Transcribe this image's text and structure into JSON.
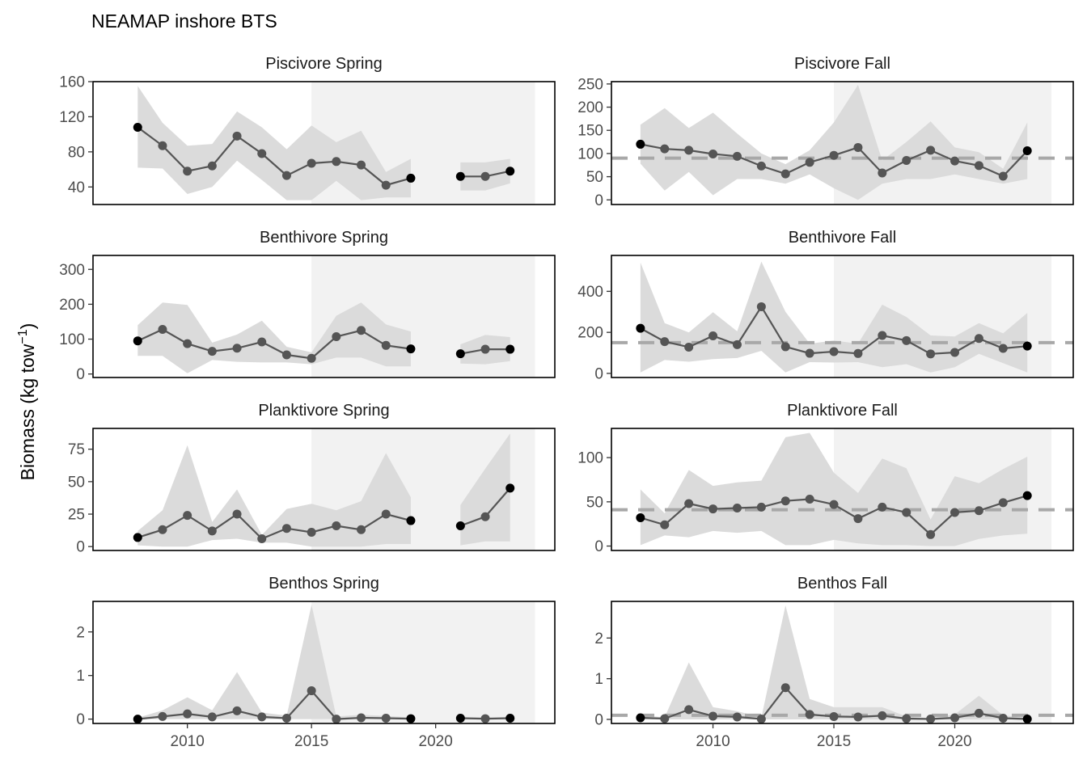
{
  "title": "NEAMAP inshore BTS",
  "ylabel": "Biomass (kg tow",
  "ylabel_sup": "−1",
  "ylabel_close": ")",
  "colors": {
    "ribbon": "#d9d9d9",
    "highlight": "#f2f2f2",
    "line": "#555555",
    "point": "#555555",
    "endpoint": "#000000",
    "mean_line": "#a8a8a8",
    "frame": "#000000"
  },
  "chart_data": [
    {
      "id": "piscivore-spring",
      "type": "line",
      "strip": "Piscivore Spring",
      "xlim": [
        2006.2,
        2024.8
      ],
      "ylim": [
        20,
        160
      ],
      "yticks": [
        40,
        80,
        120,
        160
      ],
      "xticks": [],
      "highlight": [
        2015,
        2024
      ],
      "mean": null,
      "x": [
        2008,
        2009,
        2010,
        2011,
        2012,
        2013,
        2014,
        2015,
        2016,
        2017,
        2018,
        2019,
        2020,
        2021,
        2022,
        2023
      ],
      "y": [
        108,
        87,
        58,
        64,
        98,
        78,
        53,
        67,
        69,
        65,
        42,
        50,
        null,
        52,
        52,
        58
      ],
      "lower": [
        62,
        61,
        32,
        40,
        70,
        48,
        25,
        25,
        47,
        25,
        28,
        28,
        null,
        36,
        36,
        44
      ],
      "upper": [
        155,
        113,
        87,
        89,
        126,
        108,
        83,
        110,
        91,
        104,
        57,
        72,
        null,
        68,
        68,
        72
      ]
    },
    {
      "id": "piscivore-fall",
      "type": "line",
      "strip": "Piscivore Fall",
      "xlim": [
        2005.8,
        2024.9
      ],
      "ylim": [
        -10,
        255
      ],
      "yticks": [
        0,
        50,
        100,
        150,
        200,
        250
      ],
      "xticks": [],
      "highlight": [
        2015,
        2024
      ],
      "mean": 90,
      "x": [
        2007,
        2008,
        2009,
        2010,
        2011,
        2012,
        2013,
        2014,
        2015,
        2016,
        2017,
        2018,
        2019,
        2020,
        2021,
        2022,
        2023
      ],
      "y": [
        120,
        110,
        107,
        99,
        94,
        73,
        56,
        81,
        96,
        113,
        58,
        85,
        107,
        84,
        74,
        51,
        106
      ],
      "lower": [
        78,
        20,
        60,
        10,
        45,
        45,
        35,
        55,
        25,
        0,
        35,
        45,
        45,
        55,
        45,
        35,
        45
      ],
      "upper": [
        162,
        198,
        155,
        188,
        143,
        100,
        77,
        107,
        167,
        248,
        85,
        125,
        169,
        113,
        103,
        67,
        167
      ]
    },
    {
      "id": "benthivore-spring",
      "type": "line",
      "strip": "Benthivore Spring",
      "xlim": [
        2006.2,
        2024.8
      ],
      "ylim": [
        -10,
        340
      ],
      "yticks": [
        0,
        100,
        200,
        300
      ],
      "xticks": [],
      "highlight": [
        2015,
        2024
      ],
      "mean": null,
      "x": [
        2008,
        2009,
        2010,
        2011,
        2012,
        2013,
        2014,
        2015,
        2016,
        2017,
        2018,
        2019,
        2020,
        2021,
        2022,
        2023
      ],
      "y": [
        95,
        128,
        87,
        65,
        74,
        92,
        55,
        45,
        107,
        125,
        82,
        72,
        null,
        58,
        71,
        71
      ],
      "lower": [
        52,
        52,
        2,
        40,
        35,
        33,
        33,
        28,
        47,
        47,
        22,
        22,
        null,
        30,
        28,
        37
      ],
      "upper": [
        140,
        205,
        198,
        90,
        113,
        153,
        78,
        62,
        167,
        205,
        142,
        122,
        null,
        85,
        112,
        106
      ]
    },
    {
      "id": "benthivore-fall",
      "type": "line",
      "strip": "Benthivore Fall",
      "xlim": [
        2005.8,
        2024.9
      ],
      "ylim": [
        -20,
        575
      ],
      "yticks": [
        0,
        200,
        400
      ],
      "xticks": [],
      "highlight": [
        2015,
        2024
      ],
      "mean": 150,
      "x": [
        2007,
        2008,
        2009,
        2010,
        2011,
        2012,
        2013,
        2014,
        2015,
        2016,
        2017,
        2018,
        2019,
        2020,
        2021,
        2022,
        2023
      ],
      "y": [
        220,
        155,
        128,
        183,
        140,
        325,
        130,
        98,
        106,
        97,
        185,
        160,
        95,
        102,
        170,
        122,
        133
      ],
      "lower": [
        5,
        65,
        57,
        70,
        75,
        110,
        5,
        55,
        53,
        55,
        30,
        45,
        5,
        30,
        95,
        50,
        5
      ],
      "upper": [
        540,
        245,
        200,
        298,
        205,
        545,
        300,
        145,
        160,
        145,
        335,
        275,
        185,
        180,
        245,
        195,
        295
      ]
    },
    {
      "id": "planktivore-spring",
      "type": "line",
      "strip": "Planktivore Spring",
      "xlim": [
        2006.2,
        2024.8
      ],
      "ylim": [
        -3,
        91
      ],
      "yticks": [
        0,
        25,
        50,
        75
      ],
      "xticks": [],
      "highlight": [
        2015,
        2024
      ],
      "mean": null,
      "x": [
        2008,
        2009,
        2010,
        2011,
        2012,
        2013,
        2014,
        2015,
        2016,
        2017,
        2018,
        2019,
        2020,
        2021,
        2022,
        2023
      ],
      "y": [
        7,
        13,
        24,
        12,
        25,
        6,
        14,
        11,
        16,
        13,
        25,
        20,
        null,
        16,
        23,
        45
      ],
      "lower": [
        1,
        0,
        0,
        5,
        6,
        3,
        3,
        0,
        0,
        0,
        2,
        2,
        null,
        1,
        4,
        4
      ],
      "upper": [
        12,
        28,
        78,
        19,
        44,
        9,
        29,
        33,
        28,
        35,
        72,
        38,
        null,
        32,
        60,
        87
      ]
    },
    {
      "id": "planktivore-fall",
      "type": "line",
      "strip": "Planktivore Fall",
      "xlim": [
        2005.8,
        2024.9
      ],
      "ylim": [
        -5,
        133
      ],
      "yticks": [
        0,
        50,
        100
      ],
      "xticks": [],
      "highlight": [
        2015,
        2024
      ],
      "mean": 41,
      "x": [
        2007,
        2008,
        2009,
        2010,
        2011,
        2012,
        2013,
        2014,
        2015,
        2016,
        2017,
        2018,
        2019,
        2020,
        2021,
        2022,
        2023
      ],
      "y": [
        32,
        24,
        48,
        42,
        43,
        44,
        51,
        53,
        47,
        31,
        44,
        38,
        13,
        38,
        40,
        49,
        57
      ],
      "lower": [
        1,
        12,
        10,
        17,
        15,
        17,
        1,
        1,
        7,
        3,
        1,
        1,
        0,
        0,
        8,
        12,
        14
      ],
      "upper": [
        64,
        37,
        86,
        68,
        72,
        74,
        123,
        128,
        83,
        60,
        99,
        88,
        30,
        79,
        71,
        87,
        101
      ]
    },
    {
      "id": "benthos-spring",
      "type": "line",
      "strip": "Benthos Spring",
      "xlim": [
        2006.2,
        2024.8
      ],
      "ylim": [
        -0.1,
        2.7
      ],
      "yticks": [
        0,
        1,
        2
      ],
      "xticks": [
        2010,
        2015,
        2020
      ],
      "highlight": [
        2015,
        2024
      ],
      "mean": null,
      "x": [
        2008,
        2009,
        2010,
        2011,
        2012,
        2013,
        2014,
        2015,
        2016,
        2017,
        2018,
        2019,
        2020,
        2021,
        2022,
        2023
      ],
      "y": [
        0.0,
        0.06,
        0.12,
        0.05,
        0.19,
        0.05,
        0.02,
        0.65,
        0.0,
        0.03,
        0.02,
        0.01,
        null,
        0.02,
        0.01,
        0.02
      ],
      "lower": [
        0.0,
        0.0,
        0.0,
        0.0,
        0.0,
        0.0,
        0.0,
        0.0,
        0.0,
        0.0,
        0.0,
        0.0,
        null,
        0.0,
        0.0,
        0.0
      ],
      "upper": [
        0.03,
        0.2,
        0.5,
        0.2,
        1.08,
        0.15,
        0.08,
        2.62,
        0.06,
        0.1,
        0.07,
        0.04,
        null,
        0.05,
        0.03,
        0.05
      ]
    },
    {
      "id": "benthos-fall",
      "type": "line",
      "strip": "Benthos Fall",
      "xlim": [
        2005.8,
        2024.9
      ],
      "ylim": [
        -0.1,
        2.9
      ],
      "yticks": [
        0,
        1,
        2
      ],
      "xticks": [
        2010,
        2015,
        2020
      ],
      "highlight": [
        2015,
        2024
      ],
      "mean": 0.1,
      "x": [
        2007,
        2008,
        2009,
        2010,
        2011,
        2012,
        2013,
        2014,
        2015,
        2016,
        2017,
        2018,
        2019,
        2020,
        2021,
        2022,
        2023
      ],
      "y": [
        0.04,
        0.02,
        0.24,
        0.08,
        0.06,
        0.01,
        0.78,
        0.12,
        0.07,
        0.06,
        0.09,
        0.02,
        0.01,
        0.04,
        0.15,
        0.03,
        0.01
      ],
      "lower": [
        0.0,
        0.0,
        0.0,
        0.0,
        0.0,
        0.0,
        0.0,
        0.0,
        0.0,
        0.0,
        0.0,
        0.0,
        0.0,
        0.0,
        0.0,
        0.0,
        0.0
      ],
      "upper": [
        0.1,
        0.05,
        1.4,
        0.3,
        0.2,
        0.05,
        2.8,
        0.5,
        0.3,
        0.3,
        0.3,
        0.07,
        0.03,
        0.12,
        0.58,
        0.1,
        0.04
      ]
    }
  ]
}
